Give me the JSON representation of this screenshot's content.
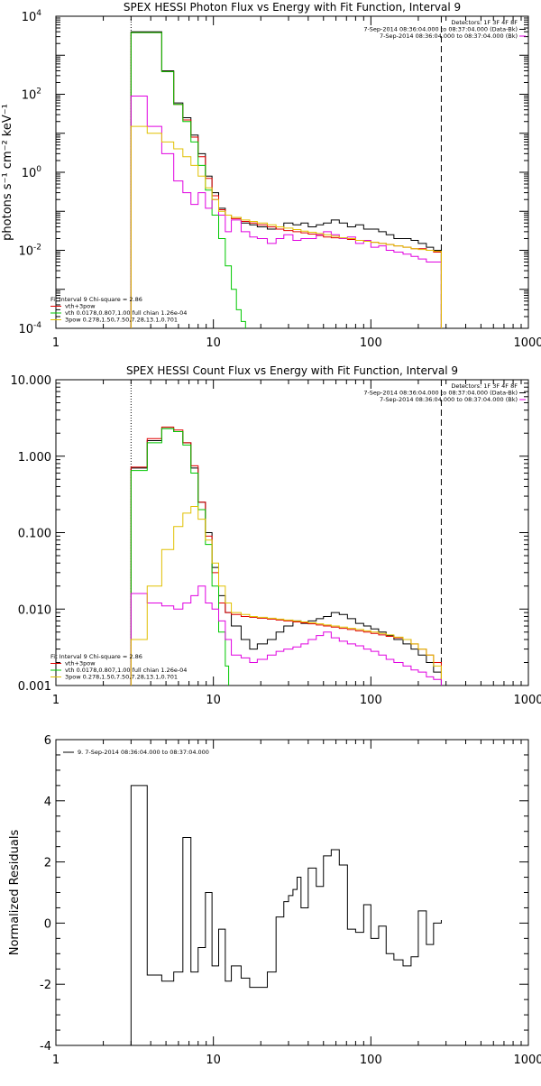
{
  "chart_data": [
    {
      "type": "line",
      "title": "SPEX HESSI Photon Flux vs Energy with Fit Function, Interval 9",
      "ylabel": "photons s⁻¹ cm⁻² keV⁻¹",
      "xlabel": "",
      "xscale": "log",
      "yscale": "log",
      "xlim": [
        1,
        1000
      ],
      "ylim": [
        0.0001,
        10000
      ],
      "xticks": [
        {
          "v": 1,
          "label": "1"
        },
        {
          "v": 10,
          "label": "10"
        },
        {
          "v": 100,
          "label": "100"
        },
        {
          "v": 1000,
          "label": "1000"
        }
      ],
      "yticks": [
        {
          "v": 0.0001,
          "label": "10",
          "exp": "-4"
        },
        {
          "v": 0.01,
          "label": "10",
          "exp": "-2"
        },
        {
          "v": 1,
          "label": "10",
          "exp": "0"
        },
        {
          "v": 100,
          "label": "10",
          "exp": "2"
        },
        {
          "v": 10000,
          "label": "10",
          "exp": "4"
        }
      ],
      "vlines": [
        {
          "x": 3,
          "style": "dotted"
        },
        {
          "x": 280,
          "style": "dashed"
        }
      ],
      "legend_top": [
        "Detectors: 1F 3F 4F 8F",
        "7-Sep-2014 08:36:04.000 to 08:37:04.000 (Data-Bk)",
        "7-Sep-2014 08:36:04.000 to 08:37:04.000 (Bk)"
      ],
      "legend_bottom": [
        "Fit Interval 9   Chi-square = 2.86",
        "vth+3pow",
        "vth 0.0178,0.807,1.00  full chian 1.26e-04",
        "3pow 0.278,1.50,7.50,7.28,13.1,0.701"
      ],
      "series": [
        {
          "color": "#000000",
          "x": [
            3,
            3.8,
            4.7,
            5.6,
            6.4,
            7.2,
            8.0,
            8.9,
            9.8,
            10.8,
            11.9,
            13,
            15,
            17,
            19,
            22,
            25,
            28,
            32,
            36,
            40,
            45,
            50,
            56,
            63,
            71,
            80,
            90,
            100,
            112,
            125,
            140,
            160,
            180,
            200,
            225,
            250,
            280
          ],
          "y": [
            4000,
            4000,
            400,
            60,
            25,
            9,
            3,
            0.8,
            0.3,
            0.12,
            0.08,
            0.07,
            0.05,
            0.045,
            0.04,
            0.035,
            0.04,
            0.05,
            0.045,
            0.05,
            0.04,
            0.045,
            0.05,
            0.06,
            0.05,
            0.04,
            0.045,
            0.035,
            0.035,
            0.03,
            0.025,
            0.02,
            0.02,
            0.018,
            0.015,
            0.012,
            0.01,
            0.0001
          ]
        },
        {
          "color": "#e00000",
          "x": [
            3,
            3.8,
            4.7,
            5.6,
            6.4,
            7.2,
            8.0,
            8.9,
            9.8,
            10.8,
            11.9,
            13,
            15,
            17,
            19,
            22,
            25,
            28,
            32,
            36,
            40,
            45,
            50,
            56,
            63,
            71,
            80,
            90,
            100,
            112,
            125,
            140,
            160,
            180,
            200,
            225,
            250,
            280
          ],
          "y": [
            3800,
            3800,
            380,
            55,
            22,
            8,
            2.5,
            0.7,
            0.25,
            0.11,
            0.08,
            0.065,
            0.055,
            0.05,
            0.045,
            0.04,
            0.035,
            0.032,
            0.03,
            0.028,
            0.026,
            0.024,
            0.022,
            0.021,
            0.02,
            0.019,
            0.018,
            0.017,
            0.016,
            0.015,
            0.014,
            0.013,
            0.012,
            0.011,
            0.011,
            0.01,
            0.009,
            0.0001
          ]
        },
        {
          "color": "#00c800",
          "x": [
            3,
            3.8,
            4.7,
            5.6,
            6.4,
            7.2,
            8.0,
            8.9,
            9.8,
            10.8,
            11.9,
            13,
            14,
            15,
            16
          ],
          "y": [
            3800,
            3800,
            380,
            55,
            20,
            6,
            1.5,
            0.35,
            0.08,
            0.02,
            0.004,
            0.001,
            0.0003,
            0.00015,
            0.0001
          ]
        },
        {
          "color": "#e000e0",
          "x": [
            3,
            3.8,
            4.7,
            5.6,
            6.4,
            7.2,
            8.0,
            8.9,
            9.8,
            10.8,
            11.9,
            13,
            15,
            17,
            19,
            22,
            25,
            28,
            32,
            36,
            40,
            45,
            50,
            56,
            63,
            71,
            80,
            90,
            100,
            112,
            125,
            140,
            160,
            180,
            200,
            225,
            250,
            280
          ],
          "y": [
            90,
            15,
            3,
            0.6,
            0.3,
            0.15,
            0.3,
            0.12,
            0.2,
            0.08,
            0.03,
            0.06,
            0.03,
            0.022,
            0.02,
            0.015,
            0.02,
            0.025,
            0.018,
            0.02,
            0.02,
            0.025,
            0.03,
            0.025,
            0.02,
            0.022,
            0.015,
            0.018,
            0.012,
            0.013,
            0.01,
            0.009,
            0.008,
            0.007,
            0.006,
            0.005,
            0.005,
            0.0001
          ]
        },
        {
          "color": "#e0c000",
          "x": [
            3,
            3.8,
            4.7,
            5.6,
            6.4,
            7.2,
            8.0,
            8.9,
            9.8,
            10.8,
            11.9,
            13,
            15,
            17,
            19,
            22,
            25,
            28,
            32,
            36,
            40,
            45,
            50,
            56,
            63,
            71,
            80,
            90,
            100,
            112,
            125,
            140,
            160,
            180,
            200,
            225,
            250,
            280
          ],
          "y": [
            15,
            10,
            6,
            4,
            2.5,
            1.5,
            0.8,
            0.4,
            0.2,
            0.1,
            0.08,
            0.07,
            0.06,
            0.055,
            0.05,
            0.045,
            0.04,
            0.037,
            0.034,
            0.031,
            0.029,
            0.027,
            0.025,
            0.023,
            0.021,
            0.02,
            0.018,
            0.017,
            0.016,
            0.015,
            0.014,
            0.013,
            0.012,
            0.011,
            0.0105,
            0.01,
            0.0095,
            0.0001
          ]
        }
      ]
    },
    {
      "type": "line",
      "title": "SPEX HESSI Count Flux vs Energy with Fit Function, Interval 9",
      "xlabel": "",
      "ylabel": "",
      "xscale": "log",
      "yscale": "log",
      "xlim": [
        1,
        1000
      ],
      "ylim": [
        0.001,
        10
      ],
      "xticks": [
        {
          "v": 1,
          "label": "1"
        },
        {
          "v": 10,
          "label": "10"
        },
        {
          "v": 100,
          "label": "100"
        },
        {
          "v": 1000,
          "label": "1000"
        }
      ],
      "yticks": [
        {
          "v": 0.001,
          "label": "0.001"
        },
        {
          "v": 0.01,
          "label": "0.010"
        },
        {
          "v": 0.1,
          "label": "0.100"
        },
        {
          "v": 1,
          "label": "1.000"
        },
        {
          "v": 10,
          "label": "10.000"
        }
      ],
      "vlines": [
        {
          "x": 3,
          "style": "dotted"
        },
        {
          "x": 280,
          "style": "dashed"
        }
      ],
      "legend_top": [
        "Detectors: 1F 3F 4F 8F",
        "7-Sep-2014 08:36:04.000 to 08:37:04.000 (Data-Bk)",
        "7-Sep-2014 08:36:04.000 to 08:37:04.000 (Bk)"
      ],
      "legend_bottom": [
        "Fit Interval 9   Chi-square = 2.86",
        "vth+3pow",
        "vth 0.0178,0.807,1.00  full chian 1.26e-04",
        "3pow 0.278,1.50,7.50,7.28,13.1,0.701"
      ],
      "series": [
        {
          "color": "#000000",
          "x": [
            3,
            3.8,
            4.7,
            5.6,
            6.4,
            7.2,
            8.0,
            8.9,
            9.8,
            10.8,
            11.9,
            13,
            15,
            17,
            19,
            22,
            25,
            28,
            32,
            36,
            40,
            45,
            50,
            56,
            63,
            71,
            80,
            90,
            100,
            112,
            125,
            140,
            160,
            180,
            200,
            225,
            250,
            280
          ],
          "y": [
            0.7,
            1.6,
            2.3,
            2.1,
            1.5,
            0.7,
            0.25,
            0.1,
            0.035,
            0.015,
            0.009,
            0.006,
            0.004,
            0.003,
            0.0035,
            0.004,
            0.005,
            0.006,
            0.007,
            0.0065,
            0.007,
            0.0075,
            0.008,
            0.009,
            0.0085,
            0.0075,
            0.0065,
            0.006,
            0.0055,
            0.005,
            0.0045,
            0.004,
            0.0035,
            0.003,
            0.0025,
            0.002,
            0.0015,
            0.001
          ]
        },
        {
          "color": "#e00000",
          "x": [
            3,
            3.8,
            4.7,
            5.6,
            6.4,
            7.2,
            8.0,
            8.9,
            9.8,
            10.8,
            11.9,
            13,
            15,
            17,
            19,
            22,
            25,
            28,
            32,
            36,
            40,
            45,
            50,
            56,
            63,
            71,
            80,
            90,
            100,
            112,
            125,
            140,
            160,
            180,
            200,
            225,
            250,
            280
          ],
          "y": [
            0.72,
            1.7,
            2.4,
            2.2,
            1.5,
            0.75,
            0.25,
            0.09,
            0.03,
            0.012,
            0.009,
            0.0085,
            0.008,
            0.0078,
            0.0076,
            0.0074,
            0.0072,
            0.007,
            0.0068,
            0.0066,
            0.0064,
            0.0062,
            0.006,
            0.0058,
            0.0056,
            0.0054,
            0.0052,
            0.005,
            0.0048,
            0.0046,
            0.0044,
            0.0042,
            0.004,
            0.0035,
            0.003,
            0.0025,
            0.002,
            0.0012
          ]
        },
        {
          "color": "#00c800",
          "x": [
            3,
            3.8,
            4.7,
            5.6,
            6.4,
            7.2,
            8.0,
            8.9,
            9.8,
            10.8,
            11.9,
            12.5
          ],
          "y": [
            0.65,
            1.5,
            2.3,
            2.1,
            1.4,
            0.6,
            0.2,
            0.07,
            0.02,
            0.005,
            0.0018,
            0.001
          ]
        },
        {
          "color": "#e000e0",
          "x": [
            3,
            3.8,
            4.7,
            5.6,
            6.4,
            7.2,
            8.0,
            8.9,
            9.8,
            10.8,
            11.9,
            13,
            15,
            17,
            19,
            22,
            25,
            28,
            32,
            36,
            40,
            45,
            50,
            56,
            63,
            71,
            80,
            90,
            100,
            112,
            125,
            140,
            160,
            180,
            200,
            225,
            250,
            280
          ],
          "y": [
            0.016,
            0.012,
            0.011,
            0.01,
            0.012,
            0.015,
            0.02,
            0.012,
            0.01,
            0.007,
            0.004,
            0.0025,
            0.0023,
            0.002,
            0.0022,
            0.0025,
            0.0028,
            0.003,
            0.0032,
            0.0035,
            0.004,
            0.0045,
            0.005,
            0.0042,
            0.0038,
            0.0035,
            0.0033,
            0.003,
            0.0028,
            0.0025,
            0.0022,
            0.002,
            0.0018,
            0.0016,
            0.0015,
            0.0013,
            0.0012,
            0.001
          ]
        },
        {
          "color": "#e0c000",
          "x": [
            3,
            3.8,
            4.7,
            5.6,
            6.4,
            7.2,
            8.0,
            8.9,
            9.8,
            10.8,
            11.9,
            13,
            15,
            17,
            19,
            22,
            25,
            28,
            32,
            36,
            40,
            45,
            50,
            56,
            63,
            71,
            80,
            90,
            100,
            112,
            125,
            140,
            160,
            180,
            200,
            225,
            250,
            280
          ],
          "y": [
            0.004,
            0.02,
            0.06,
            0.12,
            0.18,
            0.22,
            0.15,
            0.08,
            0.04,
            0.02,
            0.012,
            0.009,
            0.0085,
            0.008,
            0.0078,
            0.0076,
            0.0074,
            0.0072,
            0.007,
            0.0068,
            0.0066,
            0.0064,
            0.0062,
            0.006,
            0.0058,
            0.0056,
            0.0054,
            0.0052,
            0.005,
            0.0048,
            0.0046,
            0.0043,
            0.004,
            0.0035,
            0.003,
            0.0025,
            0.0018,
            0.0012
          ]
        }
      ]
    },
    {
      "type": "line",
      "title": "",
      "ylabel": "Normalized Residuals",
      "xlabel": "",
      "xscale": "log",
      "yscale": "linear",
      "xlim": [
        1,
        1000
      ],
      "ylim": [
        -4,
        6
      ],
      "xticks": [
        {
          "v": 1,
          "label": "1"
        },
        {
          "v": 10,
          "label": "10"
        },
        {
          "v": 100,
          "label": "100"
        },
        {
          "v": 1000,
          "label": "1000"
        }
      ],
      "yticks": [
        {
          "v": -4,
          "label": "-4"
        },
        {
          "v": -2,
          "label": "-2"
        },
        {
          "v": 0,
          "label": "0"
        },
        {
          "v": 2,
          "label": "2"
        },
        {
          "v": 4,
          "label": "4"
        },
        {
          "v": 6,
          "label": "6"
        }
      ],
      "legend_top": [
        "9.  7-Sep-2014 08:36:04.000 to 08:37:04.000"
      ],
      "series": [
        {
          "color": "#000000",
          "x": [
            3,
            3.8,
            4.7,
            5.6,
            6.4,
            7.2,
            8.0,
            8.9,
            9.8,
            10.8,
            11.9,
            13,
            15,
            17,
            19,
            22,
            25,
            28,
            30,
            32,
            34,
            36,
            40,
            45,
            50,
            56,
            63,
            71,
            80,
            90,
            100,
            112,
            125,
            140,
            160,
            180,
            200,
            225,
            250,
            280
          ],
          "y": [
            4.5,
            -1.7,
            -1.9,
            -1.6,
            2.8,
            -1.6,
            -0.8,
            1.0,
            -1.4,
            -0.2,
            -1.9,
            -1.4,
            -1.8,
            -2.1,
            -2.1,
            -1.6,
            0.2,
            0.7,
            0.9,
            1.1,
            1.5,
            0.5,
            1.8,
            1.2,
            2.2,
            2.4,
            1.9,
            -0.2,
            -0.3,
            0.6,
            -0.5,
            -0.1,
            -1.0,
            -1.2,
            -1.4,
            -1.1,
            0.4,
            -0.7,
            0.0,
            0.1
          ]
        }
      ]
    }
  ]
}
